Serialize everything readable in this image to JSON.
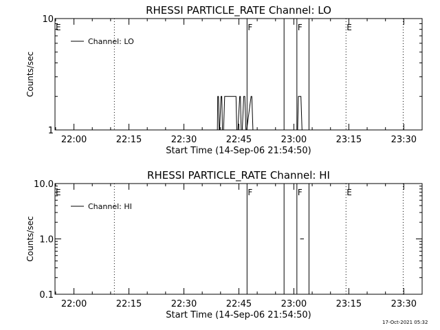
{
  "chart_data": [
    {
      "type": "line",
      "title": "RHESSI PARTICLE_RATE Channel: LO",
      "xlabel": "Start Time (14-Sep-06 21:54:50)",
      "ylabel": "Counts/sec",
      "y_scale": "log",
      "ylim": [
        1,
        10
      ],
      "xlim_minutes_after_start": [
        0,
        100.17
      ],
      "x_tick_labels": [
        "22:00",
        "22:15",
        "22:30",
        "22:45",
        "23:00",
        "23:15",
        "23:30"
      ],
      "y_tick_labels": [
        "1",
        "10"
      ],
      "legend": {
        "entries": [
          "Channel: LO"
        ],
        "placement": "top-left"
      },
      "grid": false,
      "series": [
        {
          "name": "Channel: LO",
          "x_minutes_after_start": [
            0,
            44.3,
            44.4,
            44.6,
            44.8,
            44.9,
            45.3,
            45.5,
            45.7,
            46.0,
            46.3,
            46.5,
            46.8,
            49.2,
            49.4,
            49.6,
            49.9,
            50.4,
            50.6,
            50.8,
            51.1,
            51.5,
            51.8,
            52.1,
            52.3,
            53.5,
            53.7,
            54.0,
            54.3,
            54.5,
            66.2,
            66.4,
            66.6,
            66.9,
            67.1,
            67.4,
            67.7,
            68.0,
            100.17
          ],
          "values": [
            1,
            1,
            2,
            2,
            1,
            1,
            2,
            2,
            1,
            1,
            2,
            2,
            2,
            2,
            2,
            1,
            1,
            2,
            2,
            1,
            1,
            2,
            2,
            1,
            1,
            2,
            2,
            1,
            1,
            1,
            1,
            2,
            2,
            2,
            2,
            1,
            1,
            1,
            1
          ]
        }
      ],
      "markers": [
        {
          "label": "E",
          "line": "none",
          "x_minutes_after_start": 0
        },
        {
          "label": "",
          "line": "dotted",
          "x_minutes_after_start": 16.2
        },
        {
          "label": "F",
          "line": "solid",
          "x_minutes_after_start": 52.4
        },
        {
          "label": "",
          "line": "solid",
          "x_minutes_after_start": 62.5
        },
        {
          "label": "F",
          "line": "solid",
          "x_minutes_after_start": 66.0
        },
        {
          "label": "",
          "line": "solid",
          "x_minutes_after_start": 69.3
        },
        {
          "label": "E",
          "line": "dotted",
          "x_minutes_after_start": 79.4
        },
        {
          "label": "",
          "line": "dotted",
          "x_minutes_after_start": 95.0
        }
      ]
    },
    {
      "type": "line",
      "title": "RHESSI PARTICLE_RATE Channel: HI",
      "xlabel": "Start Time (14-Sep-06 21:54:50)",
      "ylabel": "Counts/sec",
      "y_scale": "log",
      "ylim": [
        0.1,
        10
      ],
      "xlim_minutes_after_start": [
        0,
        100.17
      ],
      "x_tick_labels": [
        "22:00",
        "22:15",
        "22:30",
        "22:45",
        "23:00",
        "23:15",
        "23:30"
      ],
      "y_tick_labels": [
        "0.1",
        "1.0",
        "10.0"
      ],
      "legend": {
        "entries": [
          "Channel: HI"
        ],
        "placement": "top-left"
      },
      "grid": false,
      "series": [
        {
          "name": "Channel: HI",
          "segments": [
            {
              "x_minutes_after_start": [
                66.9,
                67.9
              ],
              "values": [
                1,
                1
              ]
            }
          ]
        }
      ],
      "markers": [
        {
          "label": "E",
          "line": "none",
          "x_minutes_after_start": 0
        },
        {
          "label": "",
          "line": "dotted",
          "x_minutes_after_start": 16.2
        },
        {
          "label": "F",
          "line": "solid",
          "x_minutes_after_start": 52.4
        },
        {
          "label": "",
          "line": "solid",
          "x_minutes_after_start": 62.5
        },
        {
          "label": "F",
          "line": "solid",
          "x_minutes_after_start": 66.0
        },
        {
          "label": "",
          "line": "solid",
          "x_minutes_after_start": 69.3
        },
        {
          "label": "E",
          "line": "dotted",
          "x_minutes_after_start": 79.4
        },
        {
          "label": "",
          "line": "dotted",
          "x_minutes_after_start": 95.0
        }
      ]
    }
  ],
  "footer": {
    "timestamp": "17-Oct-2021 05:32"
  }
}
